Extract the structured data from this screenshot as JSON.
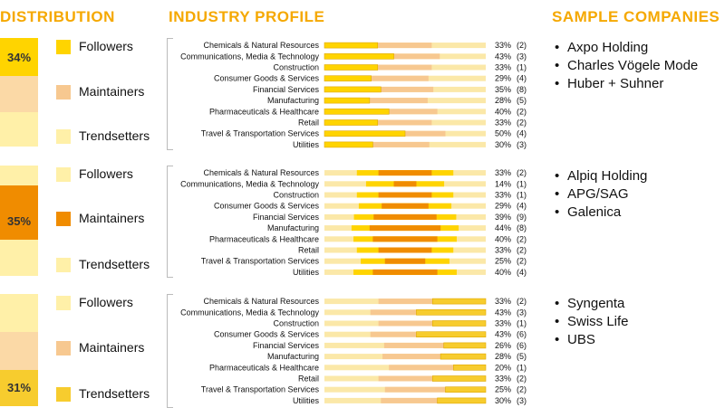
{
  "headers": {
    "distribution": "DISTRIBUTION",
    "industry_profile": "INDUSTRY PROFILE",
    "sample_companies": "SAMPLE COMPANIES"
  },
  "legend_labels": [
    "Followers",
    "Maintainers",
    "Trendsetters"
  ],
  "colors": {
    "header": "#f5a800",
    "followers": "#ffd400",
    "maintainers": "#f08c00",
    "trendsetters": "#f7cc2e",
    "light_track": "#fbe8a8",
    "peach": "#f7c890",
    "pale_yellow": "#fff0a8",
    "pale_peach": "#fbd9a6"
  },
  "groups": [
    {
      "distribution_percent": "34%",
      "highlight": "followers",
      "companies": [
        "Axpo Holding",
        "Charles Vögele Mode",
        "Huber + Suhner"
      ]
    },
    {
      "distribution_percent": "35%",
      "highlight": "maintainers",
      "companies": [
        "Alpiq Holding",
        "APG/SAG",
        "Galenica"
      ]
    },
    {
      "distribution_percent": "31%",
      "highlight": "trendsetters",
      "companies": [
        "Syngenta",
        "Swiss Life",
        "UBS"
      ]
    }
  ],
  "chart_data": [
    {
      "type": "bar",
      "group": "Followers",
      "categories": [
        "Chemicals & Natural Resources",
        "Communications, Media & Technology",
        "Construction",
        "Consumer Goods & Services",
        "Financial Services",
        "Manufacturing",
        "Pharmaceuticals & Healthcare",
        "Retail",
        "Travel & Transportation Services",
        "Utilities"
      ],
      "values": [
        33,
        43,
        33,
        29,
        35,
        28,
        40,
        33,
        50,
        30
      ],
      "counts": [
        2,
        3,
        1,
        4,
        8,
        5,
        2,
        2,
        4,
        3
      ],
      "value_labels": [
        "33%",
        "43%",
        "33%",
        "29%",
        "35%",
        "28%",
        "40%",
        "33%",
        "50%",
        "30%"
      ],
      "count_labels": [
        "(2)",
        "(3)",
        "(1)",
        "(4)",
        "(8)",
        "(5)",
        "(2)",
        "(2)",
        "(4)",
        "(3)"
      ],
      "ylim": [
        0,
        100
      ]
    },
    {
      "type": "bar",
      "group": "Maintainers",
      "categories": [
        "Chemicals & Natural Resources",
        "Communications, Media & Technology",
        "Construction",
        "Consumer Goods & Services",
        "Financial Services",
        "Manufacturing",
        "Pharmaceuticals & Healthcare",
        "Retail",
        "Travel & Transportation Services",
        "Utilities"
      ],
      "values": [
        33,
        14,
        33,
        29,
        39,
        44,
        40,
        33,
        25,
        40
      ],
      "counts": [
        2,
        1,
        1,
        4,
        9,
        8,
        2,
        2,
        2,
        4
      ],
      "value_labels": [
        "33%",
        "14%",
        "33%",
        "29%",
        "39%",
        "44%",
        "40%",
        "33%",
        "25%",
        "40%"
      ],
      "count_labels": [
        "(2)",
        "(1)",
        "(1)",
        "(4)",
        "(9)",
        "(8)",
        "(2)",
        "(2)",
        "(2)",
        "(4)"
      ],
      "ylim": [
        0,
        100
      ]
    },
    {
      "type": "bar",
      "group": "Trendsetters",
      "categories": [
        "Chemicals & Natural Resources",
        "Communications, Media & Technology",
        "Construction",
        "Consumer Goods & Services",
        "Financial Services",
        "Manufacturing",
        "Pharmaceuticals & Healthcare",
        "Retail",
        "Travel & Transportation Services",
        "Utilities"
      ],
      "values": [
        33,
        43,
        33,
        43,
        26,
        28,
        20,
        33,
        25,
        30
      ],
      "counts": [
        2,
        3,
        1,
        6,
        6,
        5,
        1,
        2,
        2,
        3
      ],
      "value_labels": [
        "33%",
        "43%",
        "33%",
        "43%",
        "26%",
        "28%",
        "20%",
        "33%",
        "25%",
        "30%"
      ],
      "count_labels": [
        "(2)",
        "(3)",
        "(1)",
        "(6)",
        "(6)",
        "(5)",
        "(1)",
        "(2)",
        "(2)",
        "(3)"
      ],
      "ylim": [
        0,
        100
      ]
    }
  ]
}
